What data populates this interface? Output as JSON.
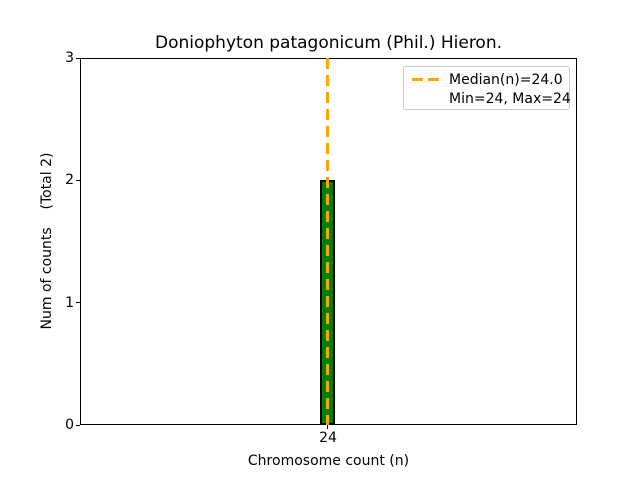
{
  "chart_data": {
    "type": "bar",
    "title": "Doniophyton patagonicum (Phil.) Hieron.",
    "xlabel": "Chromosome count (n)",
    "ylabel": "Num of counts    (Total 2)",
    "categories": [
      "24"
    ],
    "values": [
      2
    ],
    "total_counts": 2,
    "yticks": [
      0,
      1,
      2,
      3
    ],
    "ylim": [
      0,
      3
    ],
    "grid": false,
    "bar_color": "#008000",
    "bar_edge_color": "#000000",
    "median_line": {
      "x": 24,
      "value": 24.0,
      "style": "dashed",
      "color": "#FFA500"
    },
    "stats": {
      "median": 24.0,
      "min": 24,
      "max": 24
    },
    "legend": {
      "position": "upper right",
      "entries": [
        {
          "symbol": "dashed-line",
          "color": "#FFA500",
          "label": "Median(n)=24.0"
        },
        {
          "symbol": "none",
          "color": null,
          "label": "Min=24, Max=24"
        }
      ]
    }
  }
}
